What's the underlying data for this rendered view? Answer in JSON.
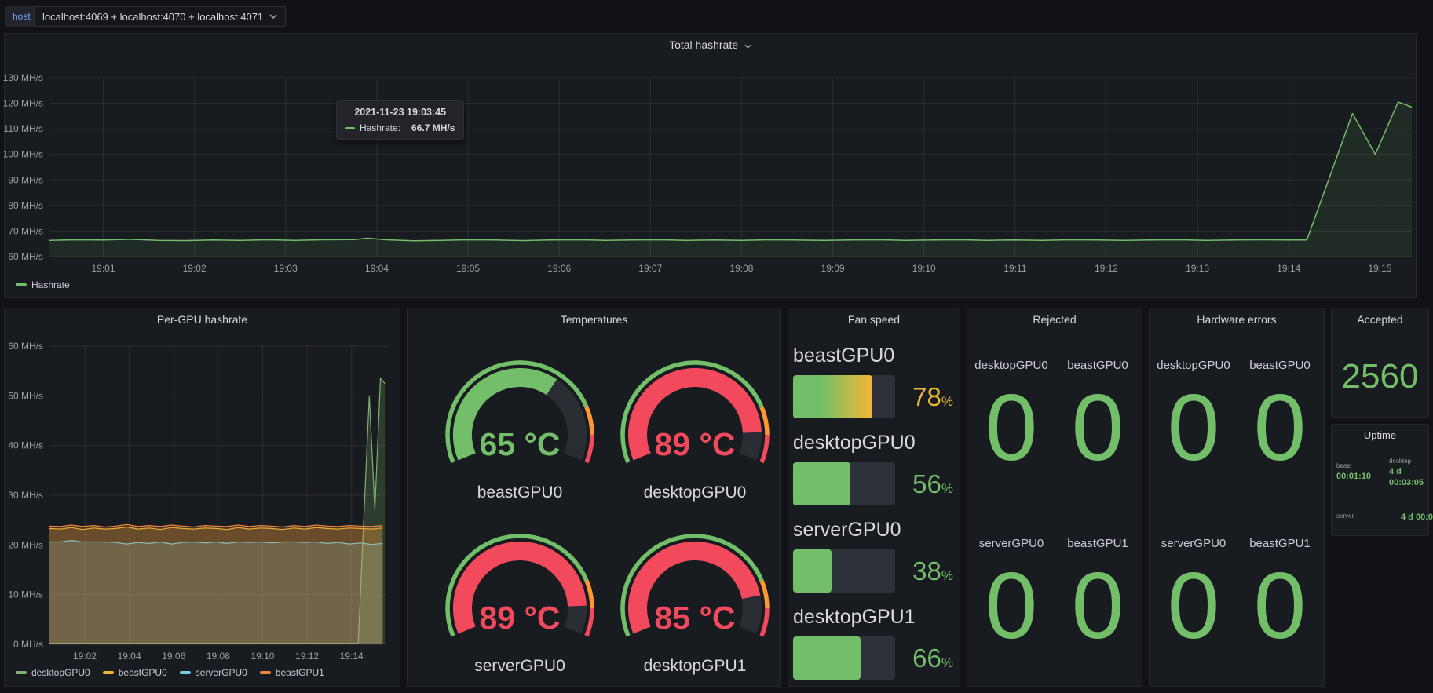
{
  "topbar": {
    "variable_label": "host",
    "variable_value": "localhost:4069 + localhost:4070 + localhost:4071"
  },
  "colors": {
    "page_bg": "#111217",
    "panel_bg": "#181b1f",
    "green": "#73bf69",
    "red": "#f2495c",
    "orange": "#ff9830",
    "yellow": "#eab839",
    "blue_label": "#6e9fff",
    "classic_green": "#7EB26D",
    "classic_yellow": "#EAB839",
    "classic_cyan": "#6ED0E0",
    "classic_orange": "#EF843C"
  },
  "panels": {
    "total": {
      "title": "Total hashrate",
      "tooltip": {
        "time": "2021-11-23 19:03:45",
        "series_label": "Hashrate:",
        "value": "66.7 MH/s"
      }
    },
    "pergpu": {
      "title": "Per-GPU hashrate"
    },
    "temps": {
      "title": "Temperatures"
    },
    "fan": {
      "title": "Fan speed"
    },
    "rejected": {
      "title": "Rejected",
      "cells": [
        {
          "label": "desktopGPU0",
          "value": "0"
        },
        {
          "label": "beastGPU0",
          "value": "0"
        },
        {
          "label": "serverGPU0",
          "value": "0"
        },
        {
          "label": "beastGPU1",
          "value": "0"
        }
      ]
    },
    "hwerrors": {
      "title": "Hardware errors",
      "cells": [
        {
          "label": "desktopGPU0",
          "value": "0"
        },
        {
          "label": "beastGPU0",
          "value": "0"
        },
        {
          "label": "serverGPU0",
          "value": "0"
        },
        {
          "label": "beastGPU1",
          "value": "0"
        }
      ]
    },
    "accepted": {
      "title": "Accepted",
      "value": "2560"
    },
    "uptime": {
      "title": "Uptime",
      "items": [
        {
          "label": "beast",
          "lines": [
            "00:01:10"
          ]
        },
        {
          "label": "desktop",
          "lines": [
            "4 d",
            "00:03:05"
          ]
        },
        {
          "label": "server",
          "lines": [
            "4 d 00:0"
          ]
        }
      ]
    }
  },
  "chart_data": [
    {
      "id": "total-hashrate",
      "type": "area",
      "title": "Total hashrate",
      "ylabel": "MH/s",
      "ylim": [
        60,
        130
      ],
      "xlim_minutes_after_1900": [
        0.41,
        15.35
      ],
      "grid": true,
      "legend_position": "bottom",
      "yticks": [
        {
          "v": 60,
          "label": "60 MH/s"
        },
        {
          "v": 70,
          "label": "70 MH/s"
        },
        {
          "v": 80,
          "label": "80 MH/s"
        },
        {
          "v": 90,
          "label": "90 MH/s"
        },
        {
          "v": 100,
          "label": "100 MH/s"
        },
        {
          "v": 110,
          "label": "110 MH/s"
        },
        {
          "v": 120,
          "label": "120 MH/s"
        },
        {
          "v": 130,
          "label": "130 MH/s"
        }
      ],
      "xticks": [
        {
          "t": 1,
          "label": "19:01"
        },
        {
          "t": 2,
          "label": "19:02"
        },
        {
          "t": 3,
          "label": "19:03"
        },
        {
          "t": 4,
          "label": "19:04"
        },
        {
          "t": 5,
          "label": "19:05"
        },
        {
          "t": 6,
          "label": "19:06"
        },
        {
          "t": 7,
          "label": "19:07"
        },
        {
          "t": 8,
          "label": "19:08"
        },
        {
          "t": 9,
          "label": "19:09"
        },
        {
          "t": 10,
          "label": "19:10"
        },
        {
          "t": 11,
          "label": "19:11"
        },
        {
          "t": 12,
          "label": "19:12"
        },
        {
          "t": 13,
          "label": "19:13"
        },
        {
          "t": 14,
          "label": "19:14"
        },
        {
          "t": 15,
          "label": "19:15"
        }
      ],
      "series": [
        {
          "name": "Hashrate",
          "color": "#73bf69",
          "fill_opacity": 0.1,
          "width": 1.5,
          "points": [
            [
              0.41,
              66.4
            ],
            [
              0.7,
              66.6
            ],
            [
              1,
              66.5
            ],
            [
              1.3,
              66.8
            ],
            [
              1.6,
              66.4
            ],
            [
              1.9,
              66.3
            ],
            [
              2.2,
              66.5
            ],
            [
              2.5,
              66.4
            ],
            [
              2.8,
              66.6
            ],
            [
              3.1,
              66.4
            ],
            [
              3.4,
              66.6
            ],
            [
              3.75,
              66.7
            ],
            [
              3.9,
              67.2
            ],
            [
              4.1,
              66.6
            ],
            [
              4.4,
              66.2
            ],
            [
              4.7,
              66.4
            ],
            [
              5,
              66.6
            ],
            [
              5.3,
              66.5
            ],
            [
              5.6,
              66.3
            ],
            [
              5.9,
              66.5
            ],
            [
              6.2,
              66.6
            ],
            [
              6.5,
              66.4
            ],
            [
              6.8,
              66.5
            ],
            [
              7.1,
              66.6
            ],
            [
              7.4,
              66.4
            ],
            [
              7.7,
              66.5
            ],
            [
              8,
              66.4
            ],
            [
              8.3,
              66.6
            ],
            [
              8.6,
              66.5
            ],
            [
              8.9,
              66.4
            ],
            [
              9.2,
              66.5
            ],
            [
              9.5,
              66.6
            ],
            [
              9.8,
              66.4
            ],
            [
              10.1,
              66.5
            ],
            [
              10.4,
              66.6
            ],
            [
              10.7,
              66.4
            ],
            [
              11,
              66.5
            ],
            [
              11.3,
              66.4
            ],
            [
              11.6,
              66.6
            ],
            [
              11.9,
              66.5
            ],
            [
              12.2,
              66.4
            ],
            [
              12.5,
              66.5
            ],
            [
              12.8,
              66.6
            ],
            [
              13.1,
              66.4
            ],
            [
              13.4,
              66.5
            ],
            [
              13.7,
              66.6
            ],
            [
              14,
              66.5
            ],
            [
              14.2,
              66.5
            ],
            [
              14.7,
              116
            ],
            [
              14.95,
              100
            ],
            [
              15.2,
              120.5
            ],
            [
              15.35,
              118.5
            ]
          ]
        }
      ]
    },
    {
      "id": "per-gpu-hashrate",
      "type": "area",
      "title": "Per-GPU hashrate",
      "ylabel": "MH/s",
      "ylim": [
        0,
        60
      ],
      "xlim_minutes_after_1900": [
        0.41,
        15.53
      ],
      "grid": true,
      "legend_position": "bottom",
      "yticks": [
        {
          "v": 0,
          "label": "0 MH/s"
        },
        {
          "v": 10,
          "label": "10 MH/s"
        },
        {
          "v": 20,
          "label": "20 MH/s"
        },
        {
          "v": 30,
          "label": "30 MH/s"
        },
        {
          "v": 40,
          "label": "40 MH/s"
        },
        {
          "v": 50,
          "label": "50 MH/s"
        },
        {
          "v": 60,
          "label": "60 MH/s"
        }
      ],
      "xticks": [
        {
          "t": 2,
          "label": "19:02"
        },
        {
          "t": 4,
          "label": "19:04"
        },
        {
          "t": 6,
          "label": "19:06"
        },
        {
          "t": 8,
          "label": "19:08"
        },
        {
          "t": 10,
          "label": "19:10"
        },
        {
          "t": 12,
          "label": "19:12"
        },
        {
          "t": 14,
          "label": "19:14"
        }
      ],
      "series": [
        {
          "name": "desktopGPU0",
          "color": "#7EB26D",
          "fill_opacity": 0.22,
          "width": 1.2,
          "points": [
            [
              0.41,
              0.2
            ],
            [
              3,
              0.2
            ],
            [
              6,
              0.2
            ],
            [
              9,
              0.2
            ],
            [
              12,
              0.2
            ],
            [
              14.3,
              0.2
            ],
            [
              14.8,
              50
            ],
            [
              15.05,
              27
            ],
            [
              15.3,
              53.5
            ],
            [
              15.5,
              52.5
            ]
          ]
        },
        {
          "name": "beastGPU0",
          "color": "#EAB839",
          "fill_opacity": 0.22,
          "width": 1.2,
          "points": [
            [
              0.4,
              23.3
            ],
            [
              0.9,
              23.2
            ],
            [
              1.4,
              23.5
            ],
            [
              1.9,
              23.1
            ],
            [
              2.4,
              23.4
            ],
            [
              2.9,
              23.2
            ],
            [
              3.4,
              23.3
            ],
            [
              3.9,
              23.6
            ],
            [
              4.4,
              23.2
            ],
            [
              4.9,
              23.4
            ],
            [
              5.4,
              23.1
            ],
            [
              5.9,
              23.5
            ],
            [
              6.4,
              23.3
            ],
            [
              6.9,
              23.2
            ],
            [
              7.4,
              23.4
            ],
            [
              7.9,
              23.3
            ],
            [
              8.4,
              23.1
            ],
            [
              8.9,
              23.5
            ],
            [
              9.4,
              23.2
            ],
            [
              9.9,
              23.4
            ],
            [
              10.4,
              23.3
            ],
            [
              10.9,
              23.1
            ],
            [
              11.4,
              23.4
            ],
            [
              11.9,
              23.2
            ],
            [
              12.4,
              23.5
            ],
            [
              12.9,
              23.3
            ],
            [
              13.4,
              23.2
            ],
            [
              13.9,
              23.4
            ],
            [
              14.4,
              23.3
            ],
            [
              14.9,
              23.2
            ],
            [
              15.4,
              23.4
            ]
          ]
        },
        {
          "name": "serverGPU0",
          "color": "#6ED0E0",
          "fill_opacity": 0.22,
          "width": 1.2,
          "points": [
            [
              0.4,
              20.6
            ],
            [
              0.9,
              20.6
            ],
            [
              1.4,
              20.9
            ],
            [
              1.9,
              20.6
            ],
            [
              2.4,
              20.6
            ],
            [
              2.9,
              20.6
            ],
            [
              3.4,
              20.5
            ],
            [
              3.9,
              20.2
            ],
            [
              4.4,
              20.5
            ],
            [
              4.9,
              20.3
            ],
            [
              5.4,
              20.6
            ],
            [
              5.9,
              20.2
            ],
            [
              6.4,
              20.5
            ],
            [
              6.9,
              20.6
            ],
            [
              7.4,
              20.4
            ],
            [
              7.9,
              20.6
            ],
            [
              8.4,
              20.3
            ],
            [
              8.9,
              20.6
            ],
            [
              9.4,
              20.5
            ],
            [
              9.9,
              20.6
            ],
            [
              10.4,
              20.4
            ],
            [
              10.9,
              20.6
            ],
            [
              11.4,
              20.6
            ],
            [
              11.9,
              20.5
            ],
            [
              12.4,
              20.6
            ],
            [
              12.9,
              20.3
            ],
            [
              13.4,
              20.5
            ],
            [
              13.9,
              20.2
            ],
            [
              14.4,
              20.4
            ],
            [
              14.9,
              20.1
            ],
            [
              15.4,
              20.3
            ]
          ]
        },
        {
          "name": "beastGPU1",
          "color": "#EF843C",
          "fill_opacity": 0.22,
          "width": 1.2,
          "points": [
            [
              0.4,
              23.8
            ],
            [
              0.9,
              23.7
            ],
            [
              1.4,
              24.0
            ],
            [
              1.9,
              23.7
            ],
            [
              2.4,
              23.9
            ],
            [
              2.9,
              23.6
            ],
            [
              3.4,
              23.8
            ],
            [
              3.9,
              24.1
            ],
            [
              4.4,
              23.7
            ],
            [
              4.9,
              23.9
            ],
            [
              5.4,
              23.7
            ],
            [
              5.9,
              24.0
            ],
            [
              6.4,
              23.8
            ],
            [
              6.9,
              23.6
            ],
            [
              7.4,
              23.9
            ],
            [
              7.9,
              23.8
            ],
            [
              8.4,
              23.7
            ],
            [
              8.9,
              24.0
            ],
            [
              9.4,
              23.7
            ],
            [
              9.9,
              23.9
            ],
            [
              10.4,
              23.8
            ],
            [
              10.9,
              23.6
            ],
            [
              11.4,
              23.9
            ],
            [
              11.9,
              23.7
            ],
            [
              12.4,
              24.0
            ],
            [
              12.9,
              23.8
            ],
            [
              13.4,
              23.7
            ],
            [
              13.9,
              23.9
            ],
            [
              14.4,
              23.8
            ],
            [
              14.9,
              23.7
            ],
            [
              15.4,
              23.9
            ]
          ]
        }
      ]
    },
    {
      "id": "temperatures",
      "type": "gauge",
      "title": "Temperatures",
      "min": 0,
      "max": 100,
      "unit": " °C",
      "thresholds": [
        {
          "to": 80,
          "color": "#73bf69"
        },
        {
          "to": 90,
          "color": "#ff9830"
        },
        {
          "to": 100,
          "color": "#f2495c"
        }
      ],
      "values": [
        {
          "label": "beastGPU0",
          "value": 65,
          "color": "#73bf69"
        },
        {
          "label": "desktopGPU0",
          "value": 89,
          "color": "#f2495c"
        },
        {
          "label": "serverGPU0",
          "value": 89,
          "color": "#f2495c"
        },
        {
          "label": "desktopGPU1",
          "value": 85,
          "color": "#f2495c"
        }
      ]
    },
    {
      "id": "fan-speed",
      "type": "bar",
      "title": "Fan speed",
      "min": 0,
      "max": 100,
      "unit": "%",
      "values": [
        {
          "label": "beastGPU0",
          "value": 78,
          "color": "#EAB839",
          "gradient": true
        },
        {
          "label": "desktopGPU0",
          "value": 56,
          "color": "#73bf69",
          "gradient": false
        },
        {
          "label": "serverGPU0",
          "value": 38,
          "color": "#73bf69",
          "gradient": false
        },
        {
          "label": "desktopGPU1",
          "value": 66,
          "color": "#73bf69",
          "gradient": false
        }
      ]
    }
  ]
}
